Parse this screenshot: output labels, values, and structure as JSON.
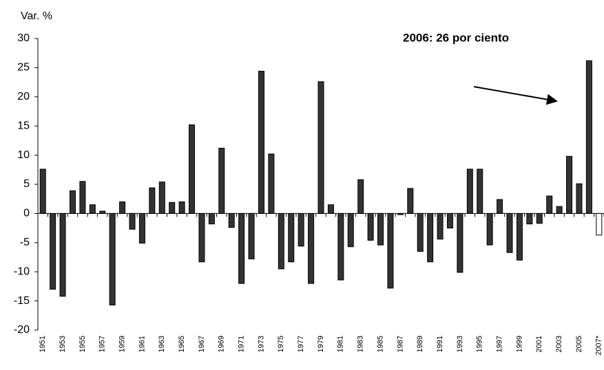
{
  "chart_data": {
    "type": "bar",
    "y_label": "Var. %",
    "annotation": "2006: 26 por ciento",
    "categories": [
      "1951",
      null,
      "1953",
      null,
      "1955",
      null,
      "1957",
      null,
      "1959",
      null,
      "1961",
      null,
      "1963",
      null,
      "1965",
      null,
      "1967",
      null,
      "1969",
      null,
      "1971",
      null,
      "1973",
      null,
      "1975",
      null,
      "1977",
      null,
      "1979",
      null,
      "1981",
      null,
      "1983",
      null,
      "1985",
      null,
      "1987",
      null,
      "1989",
      null,
      "1991",
      null,
      "1993",
      null,
      "1995",
      null,
      "1997",
      null,
      "1999",
      null,
      "2001",
      null,
      "2003",
      null,
      "2005",
      null,
      "2007*"
    ],
    "values": [
      7.6,
      -13,
      -14.2,
      3.9,
      5.5,
      1.5,
      0.4,
      -15.7,
      2.0,
      -2.7,
      -5.1,
      4.4,
      5.4,
      1.9,
      2.0,
      15.2,
      -8.3,
      -1.8,
      11.2,
      -2.4,
      -12,
      -7.8,
      24.4,
      10.2,
      -9.5,
      -8.3,
      -5.6,
      -12,
      22.6,
      1.5,
      -11.4,
      -5.7,
      5.8,
      -4.6,
      -5.4,
      -12.8,
      -0.2,
      4.3,
      -6.5,
      -8.3,
      -4.4,
      -2.5,
      -10.1,
      7.6,
      7.6,
      -5.4,
      2.4,
      -6.7,
      -8.0,
      -1.8,
      -1.7,
      3.0,
      1.2,
      9.8,
      5.1,
      26.2,
      -3.7
    ],
    "colors": [
      "#333333",
      "#333333",
      "#333333",
      "#333333",
      "#333333",
      "#333333",
      "#333333",
      "#333333",
      "#333333",
      "#333333",
      "#333333",
      "#333333",
      "#333333",
      "#333333",
      "#333333",
      "#333333",
      "#333333",
      "#333333",
      "#333333",
      "#333333",
      "#333333",
      "#333333",
      "#333333",
      "#333333",
      "#333333",
      "#333333",
      "#333333",
      "#333333",
      "#333333",
      "#333333",
      "#333333",
      "#333333",
      "#333333",
      "#333333",
      "#333333",
      "#333333",
      "#333333",
      "#333333",
      "#333333",
      "#333333",
      "#333333",
      "#333333",
      "#333333",
      "#333333",
      "#333333",
      "#333333",
      "#333333",
      "#333333",
      "#333333",
      "#333333",
      "#333333",
      "#333333",
      "#333333",
      "#333333",
      "#333333",
      "#333333",
      "#ffffff"
    ],
    "ylim": [
      -20,
      30
    ],
    "yticks": [
      -20,
      -15,
      -10,
      -5,
      0,
      5,
      10,
      15,
      20,
      25,
      30
    ],
    "grid": false
  }
}
